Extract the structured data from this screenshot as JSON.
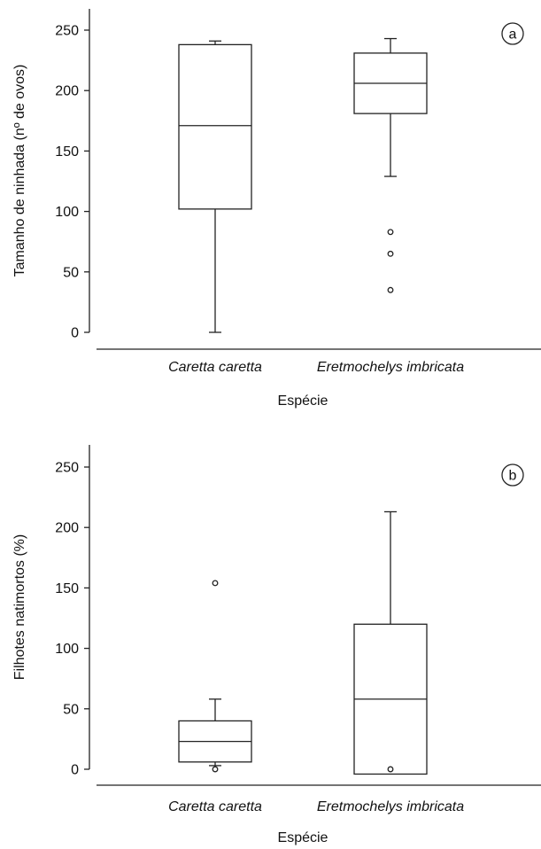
{
  "chart_data": [
    {
      "type": "box",
      "panel_label": "a",
      "xlabel": "Espécie",
      "ylabel": "Tamanho de ninhada (nº de ovos)",
      "ylim": [
        0,
        250
      ],
      "yticks": [
        0,
        50,
        100,
        150,
        200,
        250
      ],
      "categories": [
        "Caretta caretta",
        "Eretmochelys imbricata"
      ],
      "boxes": [
        {
          "min": 0,
          "q1": 102,
          "median": 171,
          "q3": 238,
          "max": 241,
          "outliers": []
        },
        {
          "min": 129,
          "q1": 181,
          "median": 206,
          "q3": 231,
          "max": 243,
          "outliers": [
            83,
            65,
            35
          ]
        }
      ]
    },
    {
      "type": "box",
      "panel_label": "b",
      "xlabel": "Espécie",
      "ylabel": "Filhotes natimortos (%)",
      "ylim": [
        0,
        250
      ],
      "yticks": [
        0,
        50,
        100,
        150,
        200,
        250
      ],
      "categories": [
        "Caretta caretta",
        "Eretmochelys imbricata"
      ],
      "boxes": [
        {
          "min": 3,
          "q1": 6,
          "median": 23,
          "q3": 40,
          "max": 58,
          "outliers": [
            154,
            0
          ]
        },
        {
          "min": -4,
          "q1": -4,
          "median": 58,
          "q3": 120,
          "max": 213,
          "outliers": [
            0
          ]
        }
      ]
    }
  ]
}
